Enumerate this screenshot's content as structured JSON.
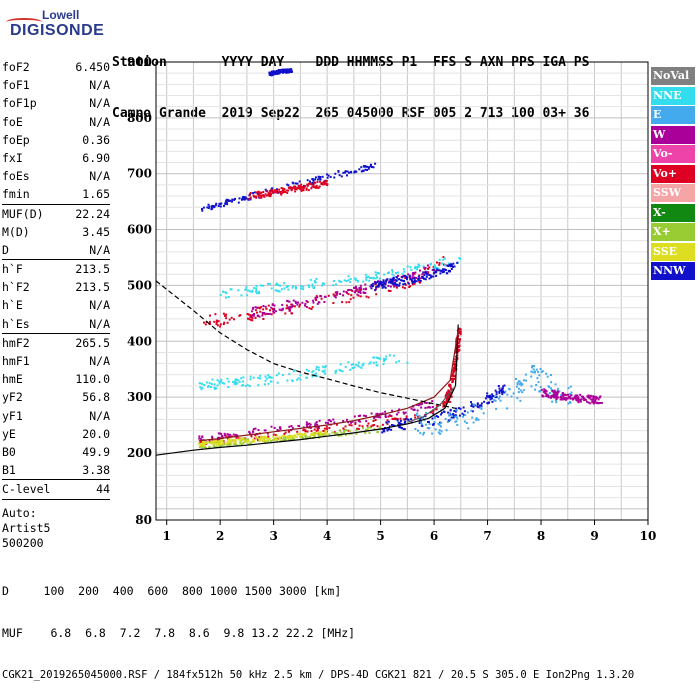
{
  "logo": {
    "top": "Lowell",
    "bottom": "DIGISONDE"
  },
  "header": {
    "row1": "Station       YYYY DAY    DDD HHMMSS P1  FFS S AXN PPS IGA PS",
    "row2": "Campo Grande  2019 Sep22  265 045000 RSF 005 2 713 100 03+ 36"
  },
  "params": {
    "group1": [
      {
        "name": "foF2",
        "value": "6.450"
      },
      {
        "name": "foF1",
        "value": "N/A"
      },
      {
        "name": "foF1p",
        "value": "N/A"
      },
      {
        "name": "foE",
        "value": "N/A"
      },
      {
        "name": "foEp",
        "value": "0.36"
      },
      {
        "name": "fxI",
        "value": "6.90"
      },
      {
        "name": "foEs",
        "value": "N/A"
      },
      {
        "name": "fmin",
        "value": "1.65"
      }
    ],
    "group2": [
      {
        "name": "MUF(D)",
        "value": "22.24"
      },
      {
        "name": "M(D)",
        "value": "3.45"
      },
      {
        "name": "D",
        "value": "N/A"
      }
    ],
    "group3": [
      {
        "name": "h`F",
        "value": "213.5"
      },
      {
        "name": "h`F2",
        "value": "213.5"
      },
      {
        "name": "h`E",
        "value": "N/A"
      },
      {
        "name": "h`Es",
        "value": "N/A"
      }
    ],
    "group4": [
      {
        "name": "hmF2",
        "value": "265.5"
      },
      {
        "name": "hmF1",
        "value": "N/A"
      },
      {
        "name": "hmE",
        "value": "110.0"
      },
      {
        "name": "yF2",
        "value": "56.8"
      },
      {
        "name": "yF1",
        "value": "N/A"
      },
      {
        "name": "yE",
        "value": "20.0"
      },
      {
        "name": "B0",
        "value": "49.9"
      },
      {
        "name": "B1",
        "value": "3.38"
      }
    ],
    "clevel": {
      "name": "C-level",
      "value": "44"
    },
    "auto": [
      "Auto:",
      "Artist5",
      "500200"
    ]
  },
  "legend": [
    {
      "label": "NoVal",
      "color": "#808080"
    },
    {
      "label": "NNE",
      "color": "#33ddee"
    },
    {
      "label": "E",
      "color": "#44aaee"
    },
    {
      "label": "W",
      "color": "#aa0099"
    },
    {
      "label": "Vo-",
      "color": "#ee44aa"
    },
    {
      "label": "Vo+",
      "color": "#dd0022"
    },
    {
      "label": "SSW",
      "color": "#f5a5a5"
    },
    {
      "label": "X-",
      "color": "#118811"
    },
    {
      "label": "X+",
      "color": "#99cc33"
    },
    {
      "label": "SSE",
      "color": "#dddd22"
    },
    {
      "label": "NNW",
      "color": "#1111cc"
    }
  ],
  "chart_data": {
    "type": "scatter",
    "x_axis": {
      "range": [
        0.8,
        10
      ],
      "ticks": [
        1,
        2,
        3,
        4,
        5,
        6,
        7,
        8,
        9,
        10
      ]
    },
    "y_axis": {
      "range": [
        80,
        900
      ],
      "ticks": [
        80,
        200,
        300,
        400,
        500,
        600,
        700,
        800,
        900
      ]
    },
    "grid": true,
    "legend_placement": "right",
    "traces": [
      {
        "color": "#dd0022",
        "x": [
          1.6,
          2.0,
          2.5,
          3.0,
          3.5,
          4.0,
          4.5,
          5.0,
          5.5,
          6.0,
          6.3
        ],
        "y": [
          220,
          224,
          228,
          233,
          238,
          244,
          250,
          258,
          268,
          280,
          300
        ],
        "spread": 7
      },
      {
        "color": "#aa0099",
        "x": [
          1.6,
          2.0,
          2.5,
          3.0,
          3.5,
          4.0,
          4.5,
          5.0,
          5.5,
          6.0
        ],
        "y": [
          226,
          232,
          238,
          244,
          250,
          256,
          262,
          270,
          280,
          290
        ],
        "spread": 6
      },
      {
        "color": "#99cc33",
        "x": [
          1.6,
          2.0,
          2.5,
          3.0,
          3.5,
          4.0,
          4.5,
          5.0
        ],
        "y": [
          214,
          218,
          222,
          226,
          230,
          235,
          240,
          245
        ],
        "spread": 5
      },
      {
        "color": "#dddd22",
        "x": [
          1.6,
          2.0,
          2.5,
          3.0,
          3.5,
          4.0
        ],
        "y": [
          217,
          221,
          225,
          229,
          233,
          238
        ],
        "spread": 4
      },
      {
        "color": "#1111cc",
        "x": [
          5.0,
          5.5,
          6.0,
          6.5,
          7.0,
          7.3
        ],
        "y": [
          246,
          255,
          262,
          275,
          300,
          320
        ],
        "spread": 10
      },
      {
        "color": "#44aaee",
        "x": [
          5.6,
          6.0,
          6.5,
          7.0,
          7.5,
          7.8,
          8.0,
          8.3,
          8.6
        ],
        "y": [
          250,
          255,
          262,
          280,
          310,
          340,
          330,
          310,
          295
        ],
        "spread": 22
      },
      {
        "color": "#aa0099",
        "x": [
          8.0,
          8.3,
          8.6,
          8.9,
          9.1
        ],
        "y": [
          310,
          305,
          300,
          298,
          296
        ],
        "spread": 7
      },
      {
        "color": "#dd0022",
        "x": [
          6.2,
          6.3,
          6.4,
          6.45
        ],
        "y": [
          290,
          320,
          370,
          420
        ],
        "spread": 5
      },
      {
        "color": "#33ddee",
        "x": [
          1.6,
          2.0,
          2.5,
          3.0,
          3.5,
          4.0,
          4.5,
          5.0,
          5.5
        ],
        "y": [
          322,
          326,
          330,
          335,
          342,
          350,
          360,
          368,
          372
        ],
        "spread": 9
      },
      {
        "color": "#dd0022",
        "x": [
          1.7,
          2.0,
          2.5,
          3.0,
          3.5,
          4.0,
          4.5,
          5.0,
          5.5,
          6.0,
          6.2
        ],
        "y": [
          435,
          440,
          448,
          456,
          466,
          476,
          486,
          496,
          508,
          530,
          550
        ],
        "spread": 12
      },
      {
        "color": "#aa0099",
        "x": [
          2.5,
          3.0,
          3.5,
          4.0,
          4.5,
          5.0,
          5.5,
          6.0
        ],
        "y": [
          452,
          460,
          470,
          480,
          492,
          502,
          515,
          535
        ],
        "spread": 9
      },
      {
        "color": "#33ddee",
        "x": [
          1.8,
          2.5,
          3.0,
          3.5,
          4.0,
          4.5,
          5.0,
          5.5,
          6.0,
          6.5
        ],
        "y": [
          484,
          492,
          498,
          502,
          508,
          514,
          520,
          528,
          538,
          550
        ],
        "spread": 8
      },
      {
        "color": "#1111cc",
        "x": [
          4.8,
          5.2,
          5.6,
          6.0,
          6.4
        ],
        "y": [
          500,
          506,
          514,
          524,
          536
        ],
        "spread": 8
      },
      {
        "color": "#1111cc",
        "x": [
          1.6,
          2.0,
          2.5,
          3.0,
          3.5,
          4.0,
          4.5,
          4.9
        ],
        "y": [
          638,
          648,
          660,
          672,
          684,
          696,
          708,
          718
        ],
        "spread": 6
      },
      {
        "color": "#dd0022",
        "x": [
          2.5,
          3.0,
          3.5,
          4.0
        ],
        "y": [
          662,
          668,
          676,
          686
        ],
        "spread": 6
      },
      {
        "color": "#1111cc",
        "x": [
          2.9,
          3.1,
          3.3
        ],
        "y": [
          880,
          885,
          886
        ],
        "spread": 3
      }
    ],
    "curves": [
      {
        "style": "solid",
        "color": "#000000",
        "x": [
          0.8,
          1.5,
          2.0,
          2.5,
          3.0,
          3.5,
          4.0,
          4.5,
          5.0,
          5.5,
          5.9,
          6.2,
          6.4,
          6.45
        ],
        "y": [
          196,
          205,
          210,
          214,
          219,
          224,
          230,
          236,
          243,
          252,
          262,
          280,
          320,
          430
        ]
      },
      {
        "style": "solid",
        "color": "#8b1a1a",
        "x": [
          1.6,
          2.0,
          2.5,
          3.0,
          3.5,
          4.0,
          4.5,
          5.0,
          5.5,
          6.0,
          6.3,
          6.45
        ],
        "y": [
          222,
          226,
          232,
          238,
          244,
          250,
          258,
          268,
          280,
          300,
          330,
          420
        ]
      },
      {
        "style": "dashed",
        "color": "#000000",
        "x": [
          0.8,
          1.5,
          2.0,
          2.5,
          3.0,
          3.5,
          4.0,
          4.5,
          5.0,
          5.5,
          6.0,
          6.4
        ],
        "y": [
          508,
          455,
          415,
          385,
          360,
          345,
          333,
          320,
          308,
          298,
          288,
          280
        ]
      },
      {
        "style": "solid",
        "color": "#555555",
        "x": [
          5.5,
          5.8,
          6.1,
          6.4
        ],
        "y": [
          255,
          265,
          285,
          320
        ]
      }
    ]
  },
  "footer": {
    "d_row": "D     100  200  400  600  800 1000 1500 3000 [km]",
    "muf_row": "MUF    6.8  6.8  7.2  7.8  8.6  9.8 13.2 22.2 [MHz]",
    "file_row": "CGK21_2019265045000.RSF / 184fx512h 50 kHz 2.5 km / DPS-4D CGK21 821 / 20.5 S 305.0 E Ion2Png 1.3.20"
  }
}
